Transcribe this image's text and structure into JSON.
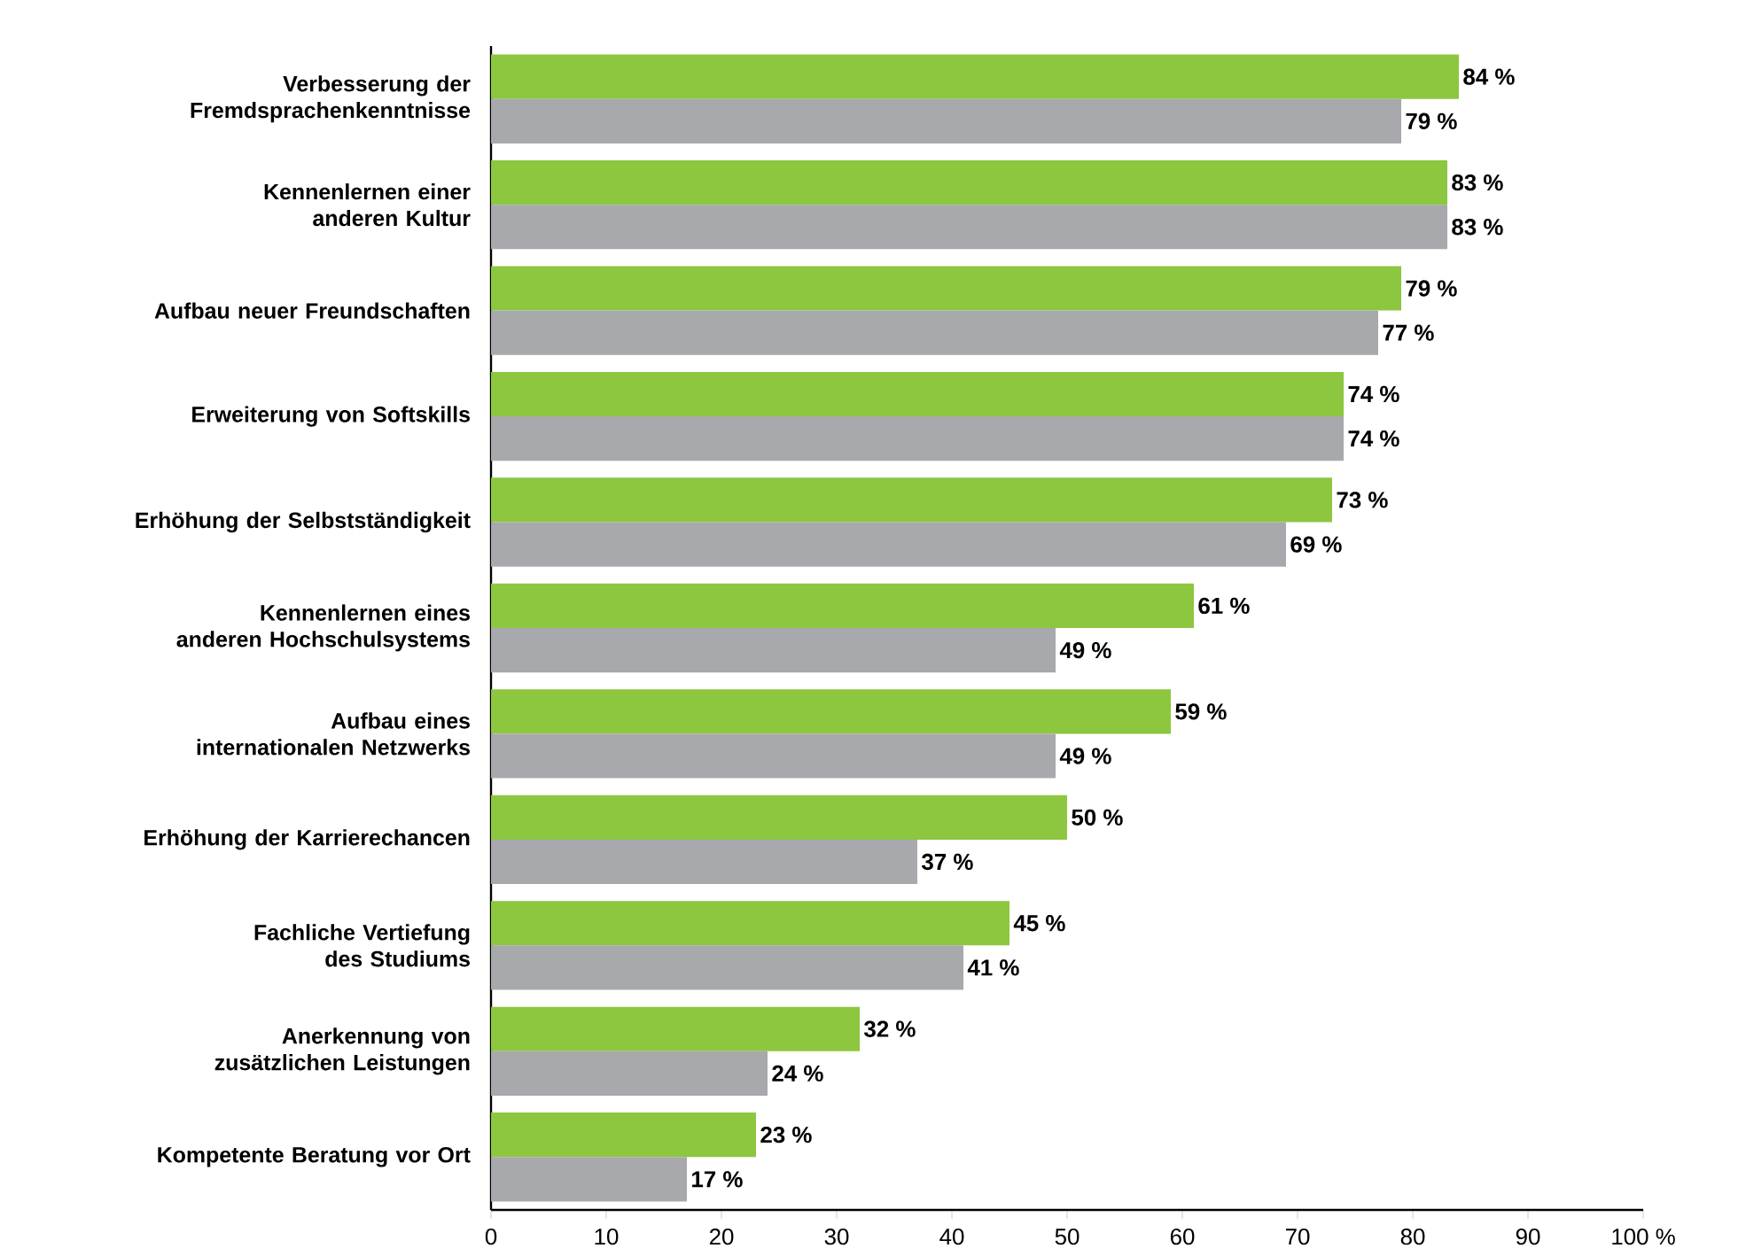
{
  "chart_data": {
    "type": "bar",
    "orientation": "horizontal",
    "categories": [
      "Verbesserung der Fremdsprachenkenntnisse",
      "Kennenlernen einer anderen Kultur",
      "Aufbau neuer Freundschaften",
      "Erweiterung von Softskills",
      "Erhöhung der Selbstständigkeit",
      "Kennenlernen eines anderen Hochschulsystems",
      "Aufbau eines internationalen Netzwerks",
      "Erhöhung der Karrierechancen",
      "Fachliche Vertiefung des Studiums",
      "Anerkennung von zusätzlichen Leistungen",
      "Kompetente Beratung vor Ort"
    ],
    "series": [
      {
        "color": "#8dc63f",
        "values": [
          84,
          83,
          79,
          74,
          73,
          61,
          59,
          50,
          45,
          32,
          23
        ],
        "value_labels": [
          "84 %",
          "83 %",
          "79 %",
          "74 %",
          "73 %",
          "61 %",
          "59 %",
          "50 %",
          "45 %",
          "32 %",
          "23 %"
        ]
      },
      {
        "color": "#a7a9ac",
        "values": [
          79,
          83,
          77,
          74,
          69,
          49,
          49,
          37,
          41,
          24,
          17
        ],
        "value_labels": [
          "79 %",
          "83 %",
          "77 %",
          "74 %",
          "69 %",
          "49 %",
          "49 %",
          "37 %",
          "41 %",
          "24 %",
          "17 %"
        ]
      }
    ],
    "xlim": [
      0,
      100
    ],
    "xticks": [
      0,
      10,
      20,
      30,
      40,
      50,
      60,
      70,
      80,
      90,
      {
        "value": 100,
        "label": "100 %"
      }
    ],
    "grid": false
  }
}
